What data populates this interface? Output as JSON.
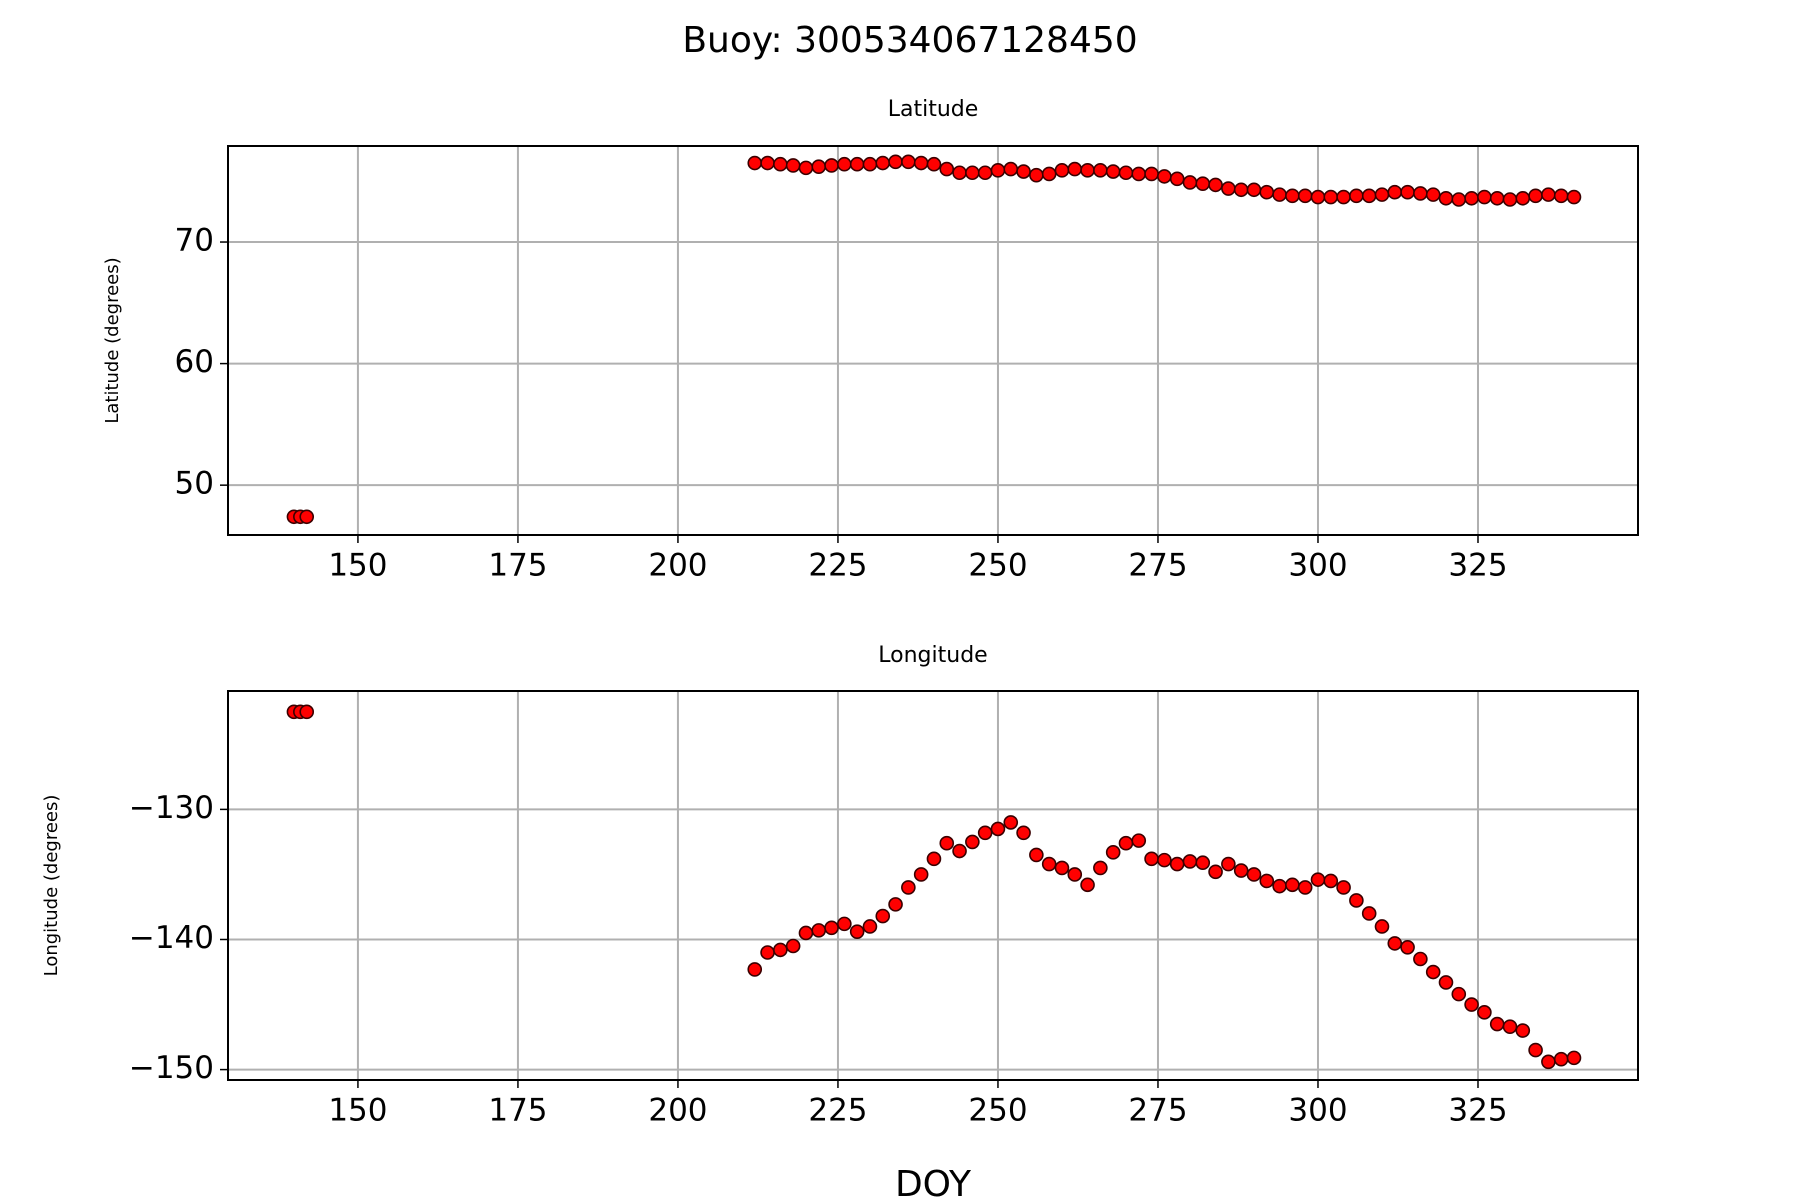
{
  "title": "Buoy: 300534067128450",
  "chart_data": [
    {
      "type": "scatter",
      "title": "Latitude",
      "ylabel": "Latitude (degrees)",
      "color": "#ff0000",
      "edgecolor": "#3a0000",
      "grid": true,
      "xlim": [
        129.7,
        350
      ],
      "xticks": [
        150,
        175,
        200,
        225,
        250,
        275,
        300,
        325
      ],
      "ylim": [
        45.9,
        77.9
      ],
      "yticks": [
        50,
        60,
        70
      ],
      "x": [
        140,
        141,
        142,
        212,
        214,
        216,
        218,
        220,
        222,
        224,
        226,
        228,
        230,
        232,
        234,
        236,
        238,
        240,
        242,
        244,
        246,
        248,
        250,
        252,
        254,
        256,
        258,
        260,
        262,
        264,
        266,
        268,
        270,
        272,
        274,
        276,
        278,
        280,
        282,
        284,
        286,
        288,
        290,
        292,
        294,
        296,
        298,
        300,
        302,
        304,
        306,
        308,
        310,
        312,
        314,
        316,
        318,
        320,
        322,
        324,
        326,
        328,
        330,
        332,
        334,
        336,
        338,
        340
      ],
      "values": [
        47.4,
        47.4,
        47.4,
        76.5,
        76.5,
        76.4,
        76.3,
        76.1,
        76.2,
        76.3,
        76.4,
        76.4,
        76.4,
        76.5,
        76.6,
        76.6,
        76.5,
        76.4,
        76.0,
        75.7,
        75.7,
        75.7,
        75.9,
        76.0,
        75.8,
        75.5,
        75.6,
        75.9,
        76.0,
        75.9,
        75.9,
        75.8,
        75.7,
        75.6,
        75.6,
        75.4,
        75.2,
        74.9,
        74.8,
        74.7,
        74.4,
        74.3,
        74.3,
        74.1,
        73.9,
        73.8,
        73.8,
        73.7,
        73.7,
        73.7,
        73.8,
        73.8,
        73.9,
        74.1,
        74.1,
        74.0,
        73.9,
        73.6,
        73.5,
        73.6,
        73.7,
        73.6,
        73.5,
        73.6,
        73.8,
        73.9,
        73.8,
        73.7
      ]
    },
    {
      "type": "scatter",
      "title": "Longitude",
      "ylabel": "Longitude (degrees)",
      "xlabel": "DOY",
      "color": "#ff0000",
      "edgecolor": "#3a0000",
      "grid": true,
      "xlim": [
        129.7,
        350
      ],
      "xticks": [
        150,
        175,
        200,
        225,
        250,
        275,
        300,
        325
      ],
      "ylim": [
        -150.8,
        -120.9
      ],
      "yticks": [
        {
          "value": -150,
          "label": "−150"
        },
        {
          "value": -140,
          "label": "−140"
        },
        {
          "value": -130,
          "label": "−130"
        }
      ],
      "x": [
        140,
        141,
        142,
        212,
        214,
        216,
        218,
        220,
        222,
        224,
        226,
        228,
        230,
        232,
        234,
        236,
        238,
        240,
        242,
        244,
        246,
        248,
        250,
        252,
        254,
        256,
        258,
        260,
        262,
        264,
        266,
        268,
        270,
        272,
        274,
        276,
        278,
        280,
        282,
        284,
        286,
        288,
        290,
        292,
        294,
        296,
        298,
        300,
        302,
        304,
        306,
        308,
        310,
        312,
        314,
        316,
        318,
        320,
        322,
        324,
        326,
        328,
        330,
        332,
        334,
        336,
        338,
        340
      ],
      "values": [
        -122.5,
        -122.5,
        -122.5,
        -142.3,
        -141.0,
        -140.8,
        -140.5,
        -139.5,
        -139.3,
        -139.1,
        -138.8,
        -139.4,
        -139.0,
        -138.2,
        -137.3,
        -136.0,
        -135.0,
        -133.8,
        -132.6,
        -133.2,
        -132.5,
        -131.8,
        -131.5,
        -131.0,
        -131.8,
        -133.5,
        -134.2,
        -134.5,
        -135.0,
        -135.8,
        -134.5,
        -133.3,
        -132.6,
        -132.4,
        -133.8,
        -133.9,
        -134.2,
        -134.0,
        -134.1,
        -134.8,
        -134.2,
        -134.7,
        -135.0,
        -135.5,
        -135.9,
        -135.8,
        -136.0,
        -135.4,
        -135.5,
        -136.0,
        -137.0,
        -138.0,
        -139.0,
        -140.3,
        -140.6,
        -141.5,
        -142.5,
        -143.3,
        -144.2,
        -145.0,
        -145.6,
        -146.5,
        -146.7,
        -147.0,
        -148.5,
        -149.4,
        -149.2,
        -149.1
      ]
    }
  ]
}
